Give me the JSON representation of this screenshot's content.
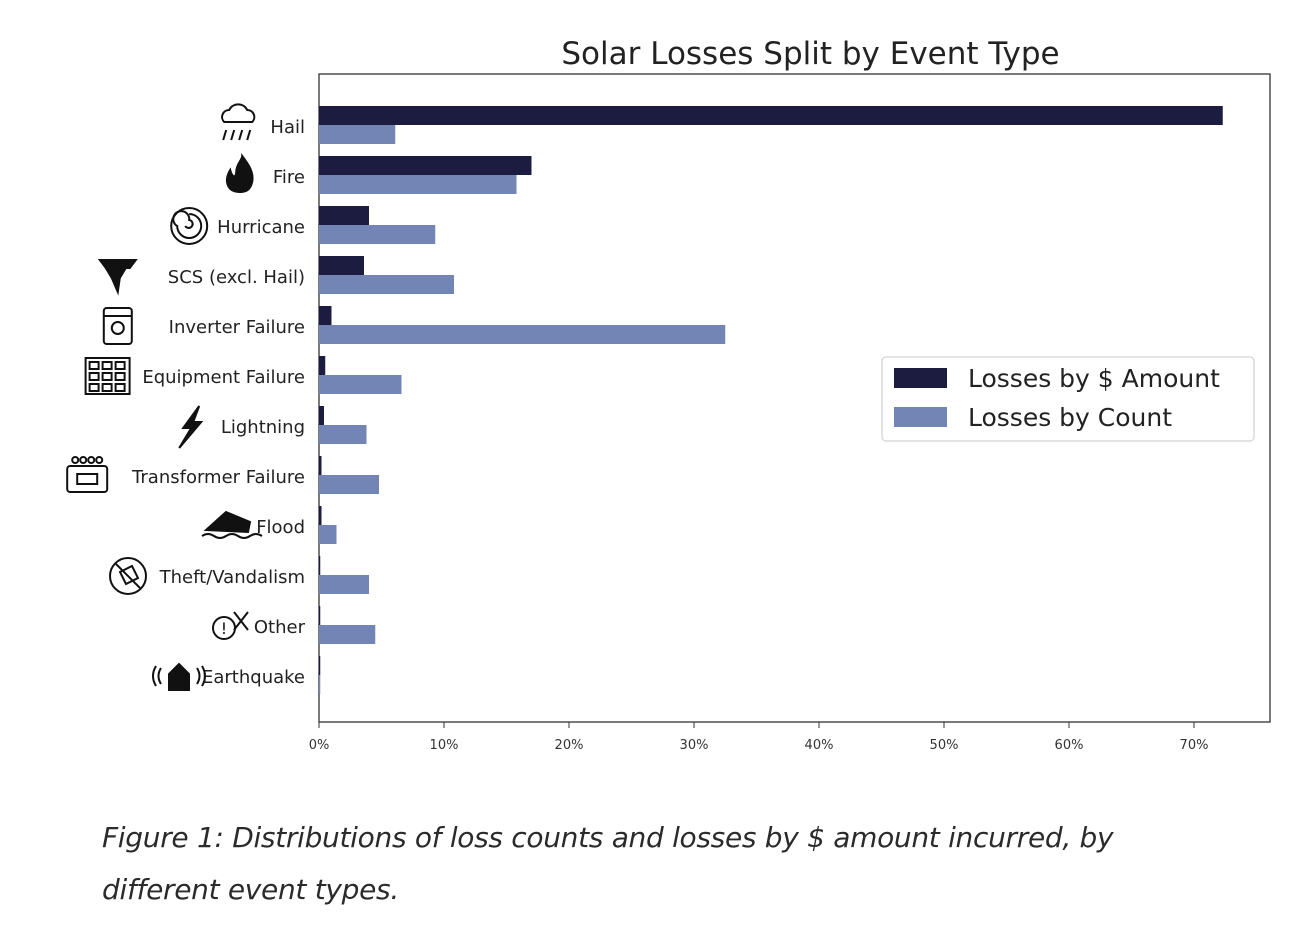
{
  "chart_data": {
    "type": "bar",
    "orientation": "horizontal",
    "title": "Solar Losses Split by Event Type",
    "xlabel": "",
    "ylabel": "",
    "xlim": [
      0,
      76
    ],
    "x_ticks": [
      "0%",
      "10%",
      "20%",
      "30%",
      "40%",
      "50%",
      "60%",
      "70%"
    ],
    "x_tick_values": [
      0,
      10,
      20,
      30,
      40,
      50,
      60,
      70
    ],
    "categories": [
      "Hail",
      "Fire",
      "Hurricane",
      "SCS (excl. Hail)",
      "Inverter Failure",
      "Equipment Failure",
      "Lightning",
      "Transformer Failure",
      "Flood",
      "Theft/Vandalism",
      "Other",
      "Earthquake"
    ],
    "category_icons": [
      "hail-icon",
      "fire-icon",
      "hurricane-icon",
      "tornado-icon",
      "inverter-icon",
      "equipment-icon",
      "lightning-icon",
      "transformer-icon",
      "flood-icon",
      "theft-icon",
      "other-icon",
      "earthquake-icon"
    ],
    "series": [
      {
        "name": "Losses by $ Amount",
        "color": "#1c1c40",
        "values": [
          72.3,
          17.0,
          4.0,
          3.6,
          1.0,
          0.5,
          0.4,
          0.2,
          0.2,
          0.1,
          0.1,
          0.1
        ]
      },
      {
        "name": "Losses by Count",
        "color": "#7385b5",
        "values": [
          6.1,
          15.8,
          9.3,
          10.8,
          32.5,
          6.6,
          3.8,
          4.8,
          1.4,
          4.0,
          4.5,
          0.1
        ]
      }
    ],
    "legend_position": "right",
    "grid": false
  },
  "caption": "Figure 1: Distributions of loss counts and losses by $ amount incurred, by different event types."
}
